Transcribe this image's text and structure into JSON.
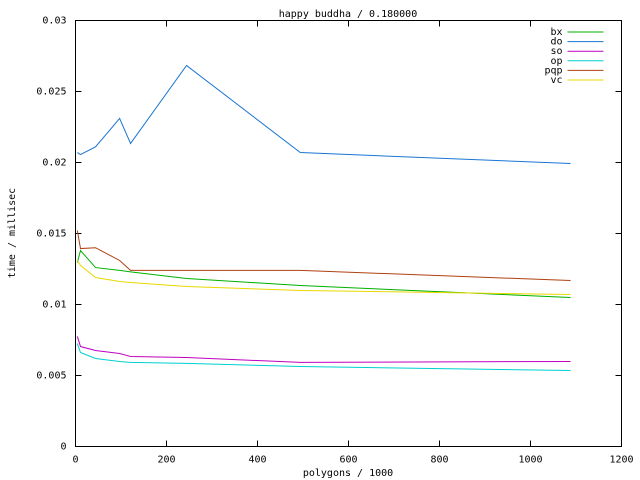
{
  "chart_data": {
    "type": "line",
    "title": "happy buddha / 0.180000",
    "x_label": "polygons / 1000",
    "y_label": "time / millisec",
    "x": [
      4,
      11,
      44,
      97,
      121,
      244,
      494,
      1088
    ],
    "series": [
      {
        "name": "bx",
        "color": "#00b000",
        "values": [
          0.01296,
          0.0138,
          0.0126,
          0.0124,
          0.0123,
          0.01183,
          0.01134,
          0.01049
        ]
      },
      {
        "name": "do",
        "color": "#1a75d1",
        "values": [
          0.0207,
          0.02056,
          0.0211,
          0.0231,
          0.02134,
          0.02683,
          0.0207,
          0.01993
        ]
      },
      {
        "name": "so",
        "color": "#c000c0",
        "values": [
          0.00775,
          0.00704,
          0.00676,
          0.00655,
          0.00634,
          0.00627,
          0.00592,
          0.00599
        ]
      },
      {
        "name": "op",
        "color": "#00d0d0",
        "values": [
          0.00725,
          0.00662,
          0.0062,
          0.00599,
          0.00592,
          0.00585,
          0.00563,
          0.00535
        ]
      },
      {
        "name": "pqp",
        "color": "#b04010",
        "values": [
          0.01521,
          0.01394,
          0.014,
          0.0131,
          0.0124,
          0.0124,
          0.0124,
          0.01169
        ]
      },
      {
        "name": "vc",
        "color": "#e8d800",
        "values": [
          0.0131,
          0.01275,
          0.0119,
          0.01162,
          0.01155,
          0.01127,
          0.01099,
          0.0107
        ]
      }
    ],
    "xlim": [
      0,
      1200
    ],
    "xticks": [
      0,
      200,
      400,
      600,
      800,
      1000,
      1200
    ],
    "ylim": [
      0,
      0.03
    ],
    "yticks": [
      0,
      0.005,
      0.01,
      0.015,
      0.02,
      0.025,
      0.03
    ],
    "legend": "top-right"
  }
}
